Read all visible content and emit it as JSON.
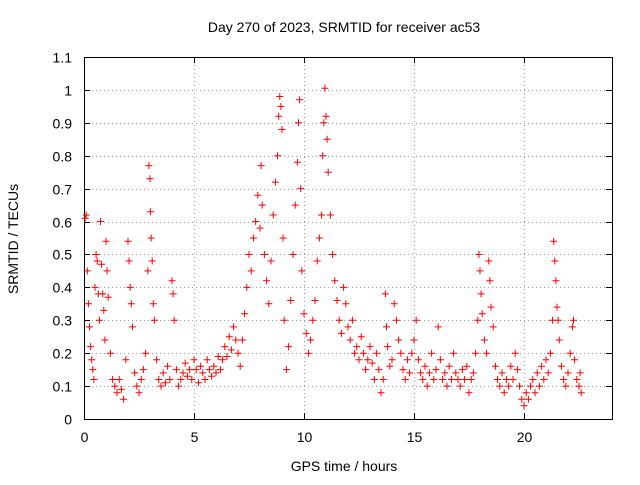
{
  "chart_data": {
    "type": "scatter",
    "title": "Day 270 of 2023, SRMTID for receiver ac53",
    "xlabel": "GPS time / hours",
    "ylabel": "SRMTID / TECUs",
    "xlim": [
      0,
      24
    ],
    "ylim": [
      0,
      1.1
    ],
    "xticks": [
      0,
      5,
      10,
      15,
      20
    ],
    "xtick_labels": [
      "0",
      "5",
      "10",
      "15",
      "20"
    ],
    "yticks": [
      0,
      0.1,
      0.2,
      0.3,
      0.4,
      0.5,
      0.6,
      0.7,
      0.8,
      0.9,
      1.0,
      1.1
    ],
    "ytick_labels": [
      "0",
      "0.1",
      "0.2",
      "0.3",
      "0.4",
      "0.5",
      "0.6",
      "0.7",
      "0.8",
      "0.9",
      "1",
      "1.1"
    ],
    "grid": true,
    "marker": "+",
    "color": "#ff0000",
    "series": [
      {
        "name": "SRMTID",
        "points": [
          [
            0.05,
            0.61
          ],
          [
            0.1,
            0.62
          ],
          [
            0.15,
            0.45
          ],
          [
            0.2,
            0.35
          ],
          [
            0.25,
            0.28
          ],
          [
            0.3,
            0.22
          ],
          [
            0.35,
            0.18
          ],
          [
            0.4,
            0.15
          ],
          [
            0.45,
            0.12
          ],
          [
            0.5,
            0.4
          ],
          [
            0.55,
            0.5
          ],
          [
            0.6,
            0.48
          ],
          [
            0.65,
            0.38
          ],
          [
            0.7,
            0.3
          ],
          [
            0.75,
            0.6
          ],
          [
            0.8,
            0.47
          ],
          [
            0.85,
            0.38
          ],
          [
            0.9,
            0.33
          ],
          [
            0.95,
            0.24
          ],
          [
            1.0,
            0.54
          ],
          [
            1.05,
            0.45
          ],
          [
            1.1,
            0.37
          ],
          [
            1.2,
            0.2
          ],
          [
            1.3,
            0.12
          ],
          [
            1.4,
            0.1
          ],
          [
            1.5,
            0.08
          ],
          [
            1.6,
            0.12
          ],
          [
            1.7,
            0.09
          ],
          [
            1.8,
            0.06
          ],
          [
            1.9,
            0.18
          ],
          [
            2.0,
            0.54
          ],
          [
            2.05,
            0.48
          ],
          [
            2.1,
            0.4
          ],
          [
            2.15,
            0.35
          ],
          [
            2.2,
            0.28
          ],
          [
            2.3,
            0.14
          ],
          [
            2.4,
            0.1
          ],
          [
            2.5,
            0.08
          ],
          [
            2.6,
            0.12
          ],
          [
            2.7,
            0.15
          ],
          [
            2.8,
            0.2
          ],
          [
            2.9,
            0.45
          ],
          [
            2.95,
            0.77
          ],
          [
            3.0,
            0.73
          ],
          [
            3.02,
            0.63
          ],
          [
            3.05,
            0.55
          ],
          [
            3.1,
            0.48
          ],
          [
            3.15,
            0.35
          ],
          [
            3.2,
            0.3
          ],
          [
            3.3,
            0.18
          ],
          [
            3.4,
            0.12
          ],
          [
            3.5,
            0.1
          ],
          [
            3.6,
            0.14
          ],
          [
            3.7,
            0.11
          ],
          [
            3.8,
            0.16
          ],
          [
            3.9,
            0.12
          ],
          [
            4.0,
            0.42
          ],
          [
            4.05,
            0.38
          ],
          [
            4.1,
            0.3
          ],
          [
            4.2,
            0.15
          ],
          [
            4.3,
            0.1
          ],
          [
            4.4,
            0.12
          ],
          [
            4.5,
            0.14
          ],
          [
            4.6,
            0.17
          ],
          [
            4.7,
            0.13
          ],
          [
            4.8,
            0.15
          ],
          [
            4.9,
            0.12
          ],
          [
            5.0,
            0.18
          ],
          [
            5.1,
            0.15
          ],
          [
            5.2,
            0.11
          ],
          [
            5.3,
            0.16
          ],
          [
            5.4,
            0.14
          ],
          [
            5.5,
            0.12
          ],
          [
            5.6,
            0.18
          ],
          [
            5.7,
            0.15
          ],
          [
            5.8,
            0.13
          ],
          [
            5.9,
            0.16
          ],
          [
            6.0,
            0.14
          ],
          [
            6.1,
            0.19
          ],
          [
            6.2,
            0.15
          ],
          [
            6.3,
            0.18
          ],
          [
            6.4,
            0.22
          ],
          [
            6.5,
            0.19
          ],
          [
            6.6,
            0.25
          ],
          [
            6.7,
            0.21
          ],
          [
            6.8,
            0.28
          ],
          [
            6.9,
            0.24
          ],
          [
            7.0,
            0.2
          ],
          [
            7.1,
            0.16
          ],
          [
            7.2,
            0.24
          ],
          [
            7.3,
            0.32
          ],
          [
            7.4,
            0.4
          ],
          [
            7.5,
            0.5
          ],
          [
            7.6,
            0.45
          ],
          [
            7.7,
            0.55
          ],
          [
            7.8,
            0.6
          ],
          [
            7.9,
            0.68
          ],
          [
            8.0,
            0.58
          ],
          [
            8.05,
            0.77
          ],
          [
            8.1,
            0.65
          ],
          [
            8.2,
            0.5
          ],
          [
            8.3,
            0.42
          ],
          [
            8.4,
            0.35
          ],
          [
            8.5,
            0.48
          ],
          [
            8.6,
            0.62
          ],
          [
            8.7,
            0.72
          ],
          [
            8.8,
            0.8
          ],
          [
            8.85,
            0.92
          ],
          [
            8.9,
            0.98
          ],
          [
            8.95,
            0.95
          ],
          [
            9.0,
            0.88
          ],
          [
            9.05,
            0.55
          ],
          [
            9.1,
            0.3
          ],
          [
            9.2,
            0.15
          ],
          [
            9.3,
            0.22
          ],
          [
            9.4,
            0.36
          ],
          [
            9.5,
            0.5
          ],
          [
            9.6,
            0.65
          ],
          [
            9.7,
            0.78
          ],
          [
            9.75,
            0.9
          ],
          [
            9.8,
            0.97
          ],
          [
            9.85,
            0.7
          ],
          [
            9.9,
            0.45
          ],
          [
            10.0,
            0.32
          ],
          [
            10.1,
            0.26
          ],
          [
            10.2,
            0.2
          ],
          [
            10.3,
            0.24
          ],
          [
            10.4,
            0.3
          ],
          [
            10.5,
            0.36
          ],
          [
            10.6,
            0.48
          ],
          [
            10.7,
            0.55
          ],
          [
            10.8,
            0.62
          ],
          [
            10.85,
            0.8
          ],
          [
            10.9,
            0.9
          ],
          [
            10.95,
            1.005
          ],
          [
            11.0,
            0.92
          ],
          [
            11.05,
            0.85
          ],
          [
            11.1,
            0.75
          ],
          [
            11.2,
            0.62
          ],
          [
            11.3,
            0.5
          ],
          [
            11.4,
            0.42
          ],
          [
            11.5,
            0.36
          ],
          [
            11.6,
            0.3
          ],
          [
            11.7,
            0.26
          ],
          [
            11.8,
            0.4
          ],
          [
            11.9,
            0.35
          ],
          [
            12.0,
            0.28
          ],
          [
            12.1,
            0.24
          ],
          [
            12.2,
            0.3
          ],
          [
            12.3,
            0.2
          ],
          [
            12.4,
            0.22
          ],
          [
            12.5,
            0.18
          ],
          [
            12.6,
            0.25
          ],
          [
            12.7,
            0.2
          ],
          [
            12.8,
            0.15
          ],
          [
            12.9,
            0.18
          ],
          [
            13.0,
            0.22
          ],
          [
            13.1,
            0.17
          ],
          [
            13.2,
            0.12
          ],
          [
            13.3,
            0.2
          ],
          [
            13.4,
            0.15
          ],
          [
            13.5,
            0.08
          ],
          [
            13.6,
            0.12
          ],
          [
            13.7,
            0.38
          ],
          [
            13.75,
            0.28
          ],
          [
            13.8,
            0.22
          ],
          [
            13.9,
            0.16
          ],
          [
            14.0,
            0.18
          ],
          [
            14.1,
            0.35
          ],
          [
            14.2,
            0.3
          ],
          [
            14.3,
            0.24
          ],
          [
            14.4,
            0.2
          ],
          [
            14.5,
            0.15
          ],
          [
            14.6,
            0.12
          ],
          [
            14.7,
            0.18
          ],
          [
            14.8,
            0.14
          ],
          [
            14.9,
            0.2
          ],
          [
            15.0,
            0.24
          ],
          [
            15.1,
            0.3
          ],
          [
            15.2,
            0.18
          ],
          [
            15.3,
            0.14
          ],
          [
            15.4,
            0.12
          ],
          [
            15.5,
            0.16
          ],
          [
            15.6,
            0.1
          ],
          [
            15.7,
            0.14
          ],
          [
            15.8,
            0.2
          ],
          [
            15.9,
            0.12
          ],
          [
            16.0,
            0.15
          ],
          [
            16.1,
            0.28
          ],
          [
            16.2,
            0.18
          ],
          [
            16.3,
            0.12
          ],
          [
            16.4,
            0.14
          ],
          [
            16.5,
            0.1
          ],
          [
            16.6,
            0.16
          ],
          [
            16.7,
            0.12
          ],
          [
            16.8,
            0.2
          ],
          [
            16.9,
            0.14
          ],
          [
            17.0,
            0.12
          ],
          [
            17.1,
            0.1
          ],
          [
            17.2,
            0.15
          ],
          [
            17.3,
            0.12
          ],
          [
            17.4,
            0.16
          ],
          [
            17.5,
            0.08
          ],
          [
            17.6,
            0.12
          ],
          [
            17.7,
            0.14
          ],
          [
            17.8,
            0.2
          ],
          [
            17.9,
            0.3
          ],
          [
            17.95,
            0.5
          ],
          [
            18.0,
            0.45
          ],
          [
            18.05,
            0.38
          ],
          [
            18.1,
            0.32
          ],
          [
            18.2,
            0.24
          ],
          [
            18.3,
            0.2
          ],
          [
            18.4,
            0.48
          ],
          [
            18.45,
            0.42
          ],
          [
            18.5,
            0.34
          ],
          [
            18.6,
            0.28
          ],
          [
            18.7,
            0.16
          ],
          [
            18.8,
            0.12
          ],
          [
            18.9,
            0.1
          ],
          [
            19.0,
            0.14
          ],
          [
            19.1,
            0.08
          ],
          [
            19.2,
            0.12
          ],
          [
            19.3,
            0.1
          ],
          [
            19.4,
            0.16
          ],
          [
            19.5,
            0.12
          ],
          [
            19.6,
            0.2
          ],
          [
            19.7,
            0.15
          ],
          [
            19.8,
            0.1
          ],
          [
            19.9,
            0.06
          ],
          [
            20.0,
            0.04
          ],
          [
            20.1,
            0.08
          ],
          [
            20.2,
            0.06
          ],
          [
            20.3,
            0.1
          ],
          [
            20.4,
            0.12
          ],
          [
            20.5,
            0.08
          ],
          [
            20.6,
            0.14
          ],
          [
            20.7,
            0.1
          ],
          [
            20.8,
            0.16
          ],
          [
            20.9,
            0.12
          ],
          [
            21.0,
            0.18
          ],
          [
            21.1,
            0.14
          ],
          [
            21.2,
            0.2
          ],
          [
            21.3,
            0.3
          ],
          [
            21.35,
            0.54
          ],
          [
            21.4,
            0.48
          ],
          [
            21.45,
            0.42
          ],
          [
            21.5,
            0.34
          ],
          [
            21.55,
            0.3
          ],
          [
            21.6,
            0.24
          ],
          [
            21.7,
            0.16
          ],
          [
            21.8,
            0.12
          ],
          [
            21.9,
            0.1
          ],
          [
            22.0,
            0.14
          ],
          [
            22.1,
            0.2
          ],
          [
            22.2,
            0.28
          ],
          [
            22.25,
            0.3
          ],
          [
            22.3,
            0.18
          ],
          [
            22.4,
            0.12
          ],
          [
            22.5,
            0.1
          ],
          [
            22.55,
            0.14
          ],
          [
            22.6,
            0.08
          ]
        ]
      }
    ]
  }
}
